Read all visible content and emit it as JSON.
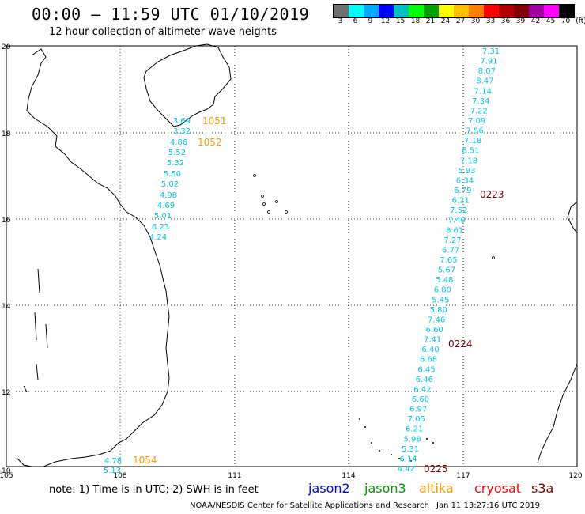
{
  "header": {
    "title": "00:00 – 11:59 UTC 01/10/2019",
    "subtitle": "12 hour collection of altimeter wave heights"
  },
  "scale": {
    "unit": "(ft)",
    "colors": [
      "#707070",
      "#00ffff",
      "#00aaff",
      "#0000ff",
      "#00c0c0",
      "#00ff00",
      "#00a000",
      "#ffff00",
      "#ffc000",
      "#ff8000",
      "#ff0000",
      "#b00000",
      "#800000",
      "#a000a0",
      "#ff00ff",
      "#000000"
    ],
    "labels": [
      "3",
      "6",
      "9",
      "12",
      "15",
      "18",
      "21",
      "24",
      "27",
      "30",
      "33",
      "36",
      "39",
      "42",
      "45",
      "70"
    ]
  },
  "map": {
    "lon_range": [
      105,
      120
    ],
    "lat_range": [
      10,
      20
    ],
    "lon_ticks": [
      "105",
      "108",
      "111",
      "114",
      "117",
      "120"
    ],
    "lat_ticks": [
      "20",
      "18",
      "16",
      "14",
      "12",
      "10"
    ],
    "track_color": "#00c8e0",
    "track_jason3_west": {
      "color": "#00c8e0",
      "values": [
        "3.69",
        "3.32",
        "4.86",
        "5.52",
        "5.32",
        "5.50",
        "5.02",
        "4.98",
        "4.69",
        "5.01",
        "6.23",
        "4.24"
      ]
    },
    "track_east": {
      "values": [
        "7.31",
        "7.91",
        "8.07",
        "8.47",
        "7.14",
        "7.34",
        "7.22",
        "7.09",
        "7.56",
        "7.18",
        "6.51",
        "7.18",
        "5.93",
        "6.34",
        "6.79",
        "6.21",
        "7.52",
        "7.40",
        "8.61",
        "7.27",
        "6.77",
        "7.65",
        "5.67",
        "5.48",
        "6.80",
        "5.45",
        "5.80",
        "7.46",
        "6.60",
        "7.41",
        "6.40",
        "6.68",
        "6.45",
        "6.46",
        "6.42",
        "6.60",
        "6.97",
        "7.05",
        "6.21",
        "5.98",
        "5.31",
        "6.14",
        "4.42"
      ]
    },
    "track_sw": {
      "values": [
        "4.78",
        "5.13"
      ]
    },
    "time_labels": [
      {
        "text": "1051",
        "color": "#ff9900"
      },
      {
        "text": "1052",
        "color": "#ff9900"
      },
      {
        "text": "1054",
        "color": "#ff9900"
      },
      {
        "text": "0223",
        "color": "#800000"
      },
      {
        "text": "0224",
        "color": "#800000"
      },
      {
        "text": "0225",
        "color": "#800000"
      }
    ]
  },
  "legend": {
    "note": "note: 1) Time is in UTC; 2) SWH is in feet",
    "satellites": [
      {
        "name": "jason2",
        "color": "#0000ff"
      },
      {
        "name": "jason3",
        "color": "#009900"
      },
      {
        "name": "altika",
        "color": "#ff9900"
      },
      {
        "name": "cryosat",
        "color": "#ff0000"
      },
      {
        "name": "s3a",
        "color": "#800000"
      }
    ]
  },
  "footer": {
    "credit": "NOAA/NESDIS Center for Satellite Applications and Research",
    "timestamp": "Jan 11 13:27:16 UTC 2019"
  }
}
